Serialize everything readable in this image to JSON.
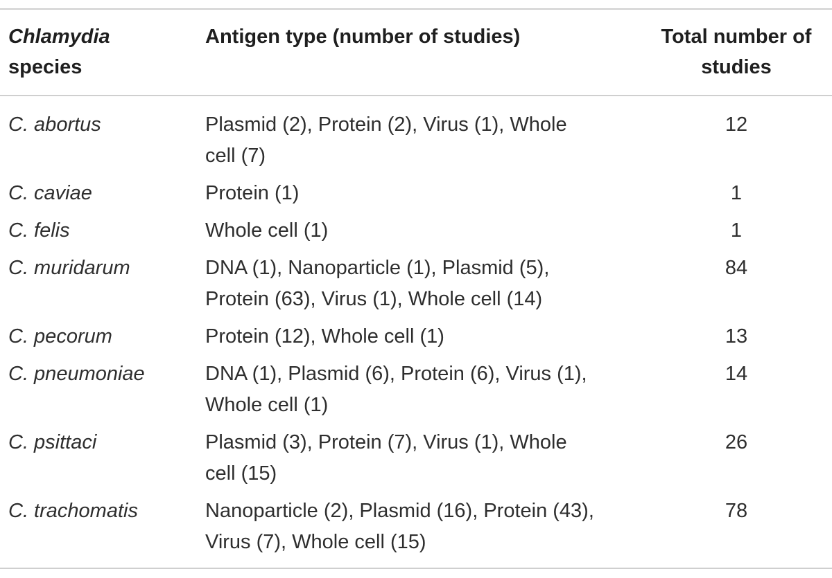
{
  "table": {
    "headers": {
      "species_genus": "Chlamydia",
      "species_word": "species",
      "antigen": "Antigen type (number of studies)",
      "total": "Total number of studies"
    },
    "rows": [
      {
        "species": "C. abortus",
        "antigens": "Plasmid (2), Protein (2), Virus (1), Whole cell (7)",
        "total": "12"
      },
      {
        "species": "C. caviae",
        "antigens": "Protein (1)",
        "total": "1"
      },
      {
        "species": "C. felis",
        "antigens": "Whole cell (1)",
        "total": "1"
      },
      {
        "species": "C. muridarum",
        "antigens": "DNA (1), Nanoparticle (1), Plasmid (5), Protein (63), Virus (1), Whole cell (14)",
        "total": "84"
      },
      {
        "species": "C. pecorum",
        "antigens": "Protein (12), Whole cell (1)",
        "total": "13"
      },
      {
        "species": "C. pneumoniae",
        "antigens": "DNA (1), Plasmid (6), Protein (6), Virus (1), Whole cell (1)",
        "total": "14"
      },
      {
        "species": "C. psittaci",
        "antigens": "Plasmid (3), Protein (7), Virus (1), Whole cell (15)",
        "total": "26"
      },
      {
        "species": "C. trachomatis",
        "antigens": "Nanoparticle (2), Plasmid (16), Protein (43), Virus (7), Whole cell (15)",
        "total": "78"
      }
    ]
  }
}
